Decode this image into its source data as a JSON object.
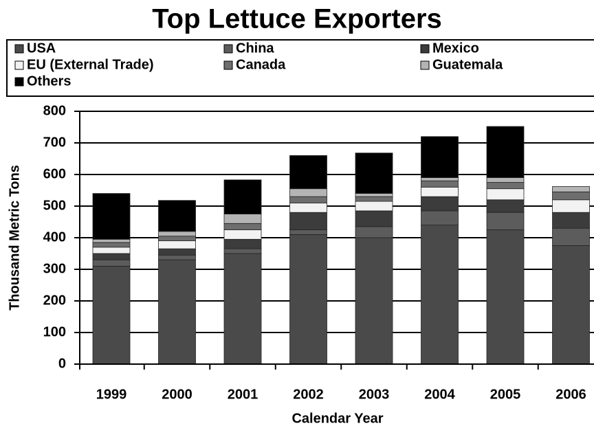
{
  "chart_data": {
    "type": "bar",
    "stacked": true,
    "title": "Top Lettuce Exporters",
    "x_label": "Calendar Year",
    "y_label": "Thousand Metric Tons",
    "categories": [
      "1999",
      "2000",
      "2001",
      "2002",
      "2003",
      "2004",
      "2005",
      "2006"
    ],
    "series": [
      {
        "name": "USA",
        "color": "#4a4a4a",
        "values": [
          310,
          330,
          350,
          410,
          400,
          440,
          425,
          375
        ]
      },
      {
        "name": "China",
        "color": "#5c5c5c",
        "values": [
          20,
          15,
          15,
          15,
          35,
          45,
          55,
          55
        ]
      },
      {
        "name": "Mexico",
        "color": "#3c3c3c",
        "values": [
          20,
          20,
          30,
          55,
          50,
          45,
          40,
          50
        ]
      },
      {
        "name": "EU (External Trade)",
        "color": "#f2f2f2",
        "values": [
          20,
          25,
          30,
          30,
          30,
          30,
          35,
          40
        ]
      },
      {
        "name": "Canada",
        "color": "#6e6e6e",
        "values": [
          15,
          15,
          20,
          20,
          15,
          20,
          20,
          25
        ]
      },
      {
        "name": "Guatemala",
        "color": "#b4b4b4",
        "values": [
          10,
          15,
          30,
          25,
          10,
          10,
          15,
          17
        ]
      },
      {
        "name": "Others",
        "color": "#000000",
        "values": [
          145,
          98,
          108,
          105,
          128,
          130,
          162,
          0
        ]
      }
    ],
    "ylim": [
      0,
      800
    ],
    "yticks": [
      0,
      100,
      200,
      300,
      400,
      500,
      600,
      700,
      800
    ],
    "grid": true
  }
}
